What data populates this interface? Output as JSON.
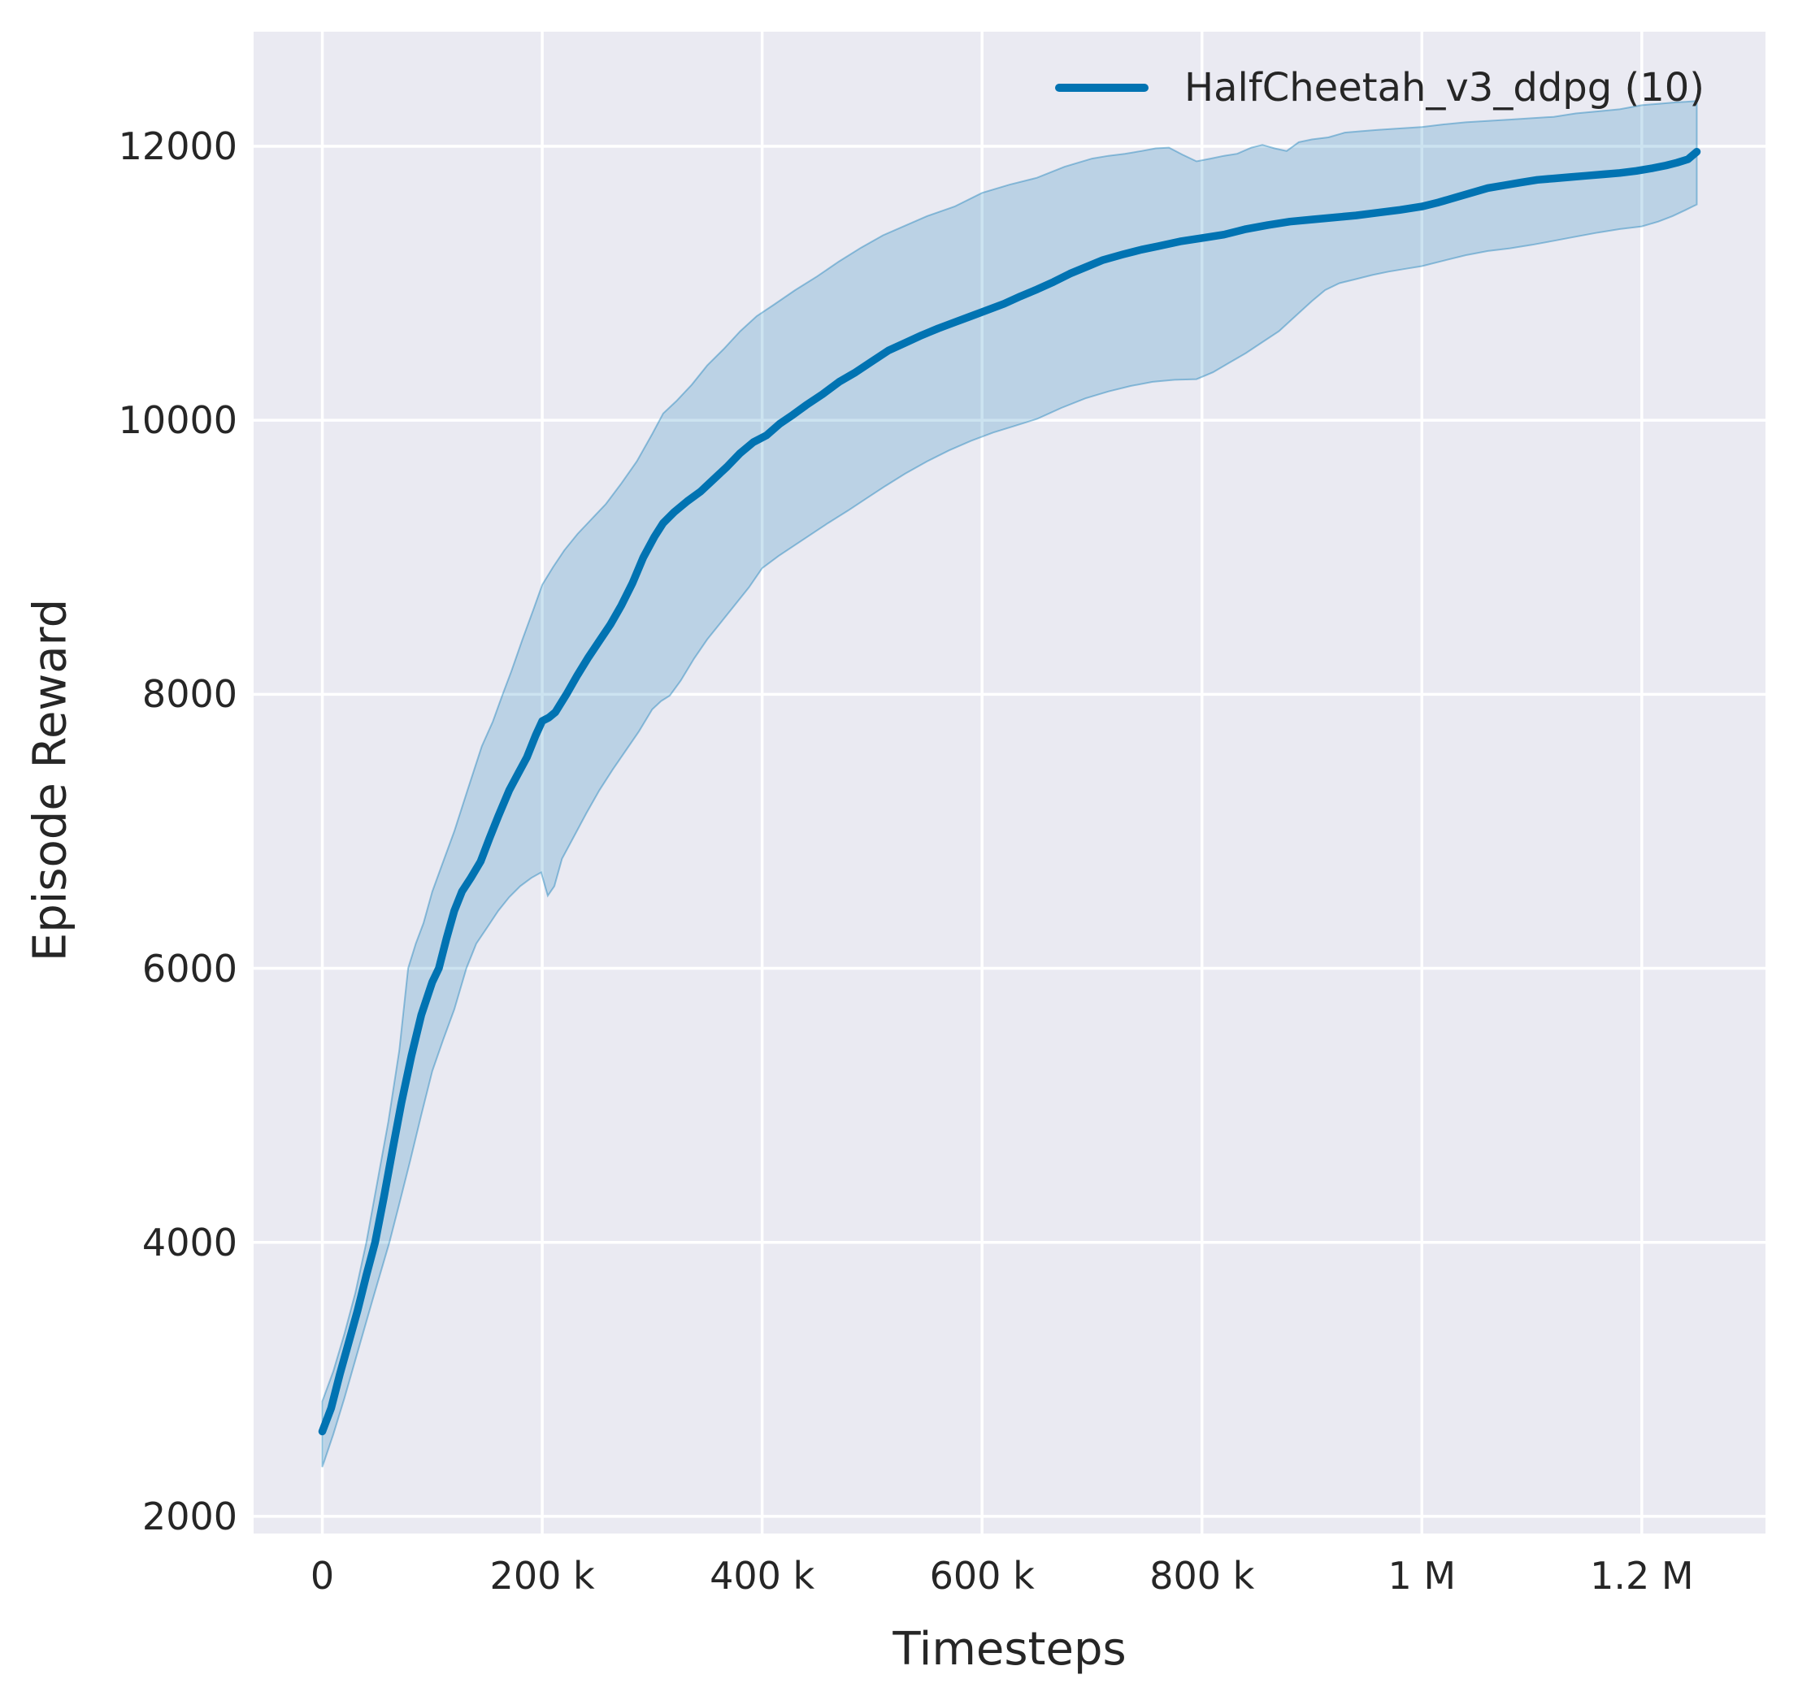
{
  "chart_data": {
    "type": "line",
    "title": "",
    "xlabel": "Timesteps",
    "ylabel": "Episode Reward",
    "legend": {
      "label": "HalfCheetah_v3_ddpg (10)",
      "position": "upper right",
      "frame": false
    },
    "grid": true,
    "x_unit": "timesteps (stored as thousands)",
    "xlim_k": [
      -62.5,
      1312.5
    ],
    "ylim": [
      1875,
      12836
    ],
    "xticks": [
      {
        "v": 0,
        "label": "0"
      },
      {
        "v": 200,
        "label": "200 k"
      },
      {
        "v": 400,
        "label": "400 k"
      },
      {
        "v": 600,
        "label": "600 k"
      },
      {
        "v": 800,
        "label": "800 k"
      },
      {
        "v": 1000,
        "label": "1 M"
      },
      {
        "v": 1200,
        "label": "1.2 M"
      }
    ],
    "yticks": [
      {
        "v": 2000,
        "label": "2000"
      },
      {
        "v": 4000,
        "label": "4000"
      },
      {
        "v": 6000,
        "label": "6000"
      },
      {
        "v": 8000,
        "label": "8000"
      },
      {
        "v": 10000,
        "label": "10000"
      },
      {
        "v": 12000,
        "label": "12000"
      }
    ],
    "colors": {
      "figure_bg": "#ffffff",
      "plot_bg": "#eaeaf2",
      "grid": "#ffffff",
      "text": "#262626",
      "line": "#0173b2",
      "band_fill": "rgba(1,115,178,0.20)",
      "band_edge": "rgba(1,115,178,0.38)"
    },
    "series": [
      {
        "name": "HalfCheetah_v3_ddpg (10)",
        "n_runs": 10,
        "mean": [
          [
            0,
            2620
          ],
          [
            8,
            2790
          ],
          [
            16,
            3040
          ],
          [
            24,
            3270
          ],
          [
            32,
            3500
          ],
          [
            40,
            3760
          ],
          [
            48,
            4000
          ],
          [
            56,
            4330
          ],
          [
            64,
            4680
          ],
          [
            72,
            5020
          ],
          [
            81,
            5360
          ],
          [
            90,
            5660
          ],
          [
            100,
            5900
          ],
          [
            106,
            6000
          ],
          [
            113,
            6220
          ],
          [
            120,
            6420
          ],
          [
            127,
            6560
          ],
          [
            135,
            6660
          ],
          [
            144,
            6780
          ],
          [
            152,
            6950
          ],
          [
            160,
            7110
          ],
          [
            170,
            7300
          ],
          [
            178,
            7420
          ],
          [
            186,
            7540
          ],
          [
            194,
            7700
          ],
          [
            200,
            7805
          ],
          [
            206,
            7830
          ],
          [
            212,
            7870
          ],
          [
            222,
            8000
          ],
          [
            232,
            8140
          ],
          [
            242,
            8270
          ],
          [
            252,
            8390
          ],
          [
            262,
            8510
          ],
          [
            272,
            8650
          ],
          [
            282,
            8810
          ],
          [
            292,
            9000
          ],
          [
            302,
            9150
          ],
          [
            310,
            9250
          ],
          [
            320,
            9330
          ],
          [
            332,
            9410
          ],
          [
            344,
            9480
          ],
          [
            356,
            9570
          ],
          [
            368,
            9660
          ],
          [
            380,
            9760
          ],
          [
            392,
            9840
          ],
          [
            404,
            9890
          ],
          [
            416,
            9975
          ],
          [
            428,
            10040
          ],
          [
            440,
            10110
          ],
          [
            455,
            10190
          ],
          [
            470,
            10280
          ],
          [
            485,
            10350
          ],
          [
            500,
            10430
          ],
          [
            515,
            10510
          ],
          [
            530,
            10565
          ],
          [
            545,
            10620
          ],
          [
            560,
            10670
          ],
          [
            575,
            10715
          ],
          [
            590,
            10760
          ],
          [
            605,
            10805
          ],
          [
            620,
            10850
          ],
          [
            635,
            10905
          ],
          [
            650,
            10955
          ],
          [
            665,
            11010
          ],
          [
            680,
            11070
          ],
          [
            695,
            11120
          ],
          [
            710,
            11170
          ],
          [
            728,
            11210
          ],
          [
            745,
            11245
          ],
          [
            760,
            11270
          ],
          [
            780,
            11305
          ],
          [
            800,
            11330
          ],
          [
            820,
            11355
          ],
          [
            840,
            11395
          ],
          [
            860,
            11425
          ],
          [
            880,
            11450
          ],
          [
            900,
            11465
          ],
          [
            920,
            11480
          ],
          [
            940,
            11495
          ],
          [
            960,
            11515
          ],
          [
            980,
            11535
          ],
          [
            1000,
            11560
          ],
          [
            1015,
            11590
          ],
          [
            1030,
            11625
          ],
          [
            1045,
            11660
          ],
          [
            1060,
            11695
          ],
          [
            1075,
            11715
          ],
          [
            1090,
            11735
          ],
          [
            1105,
            11755
          ],
          [
            1120,
            11765
          ],
          [
            1135,
            11775
          ],
          [
            1150,
            11785
          ],
          [
            1165,
            11795
          ],
          [
            1180,
            11805
          ],
          [
            1195,
            11820
          ],
          [
            1210,
            11840
          ],
          [
            1222,
            11860
          ],
          [
            1232,
            11880
          ],
          [
            1242,
            11905
          ],
          [
            1250,
            11960
          ]
        ],
        "band_upper": [
          [
            0,
            2840
          ],
          [
            10,
            3060
          ],
          [
            20,
            3330
          ],
          [
            30,
            3630
          ],
          [
            40,
            4000
          ],
          [
            50,
            4440
          ],
          [
            60,
            4880
          ],
          [
            70,
            5400
          ],
          [
            78,
            6000
          ],
          [
            85,
            6180
          ],
          [
            92,
            6330
          ],
          [
            100,
            6560
          ],
          [
            110,
            6780
          ],
          [
            120,
            7000
          ],
          [
            132,
            7300
          ],
          [
            145,
            7620
          ],
          [
            155,
            7800
          ],
          [
            164,
            8000
          ],
          [
            172,
            8170
          ],
          [
            182,
            8400
          ],
          [
            192,
            8620
          ],
          [
            200,
            8800
          ],
          [
            210,
            8930
          ],
          [
            220,
            9050
          ],
          [
            232,
            9170
          ],
          [
            245,
            9280
          ],
          [
            258,
            9390
          ],
          [
            272,
            9540
          ],
          [
            286,
            9700
          ],
          [
            300,
            9900
          ],
          [
            310,
            10050
          ],
          [
            322,
            10140
          ],
          [
            336,
            10260
          ],
          [
            350,
            10400
          ],
          [
            365,
            10520
          ],
          [
            380,
            10650
          ],
          [
            395,
            10760
          ],
          [
            410,
            10840
          ],
          [
            430,
            10950
          ],
          [
            450,
            11050
          ],
          [
            470,
            11160
          ],
          [
            490,
            11260
          ],
          [
            510,
            11350
          ],
          [
            530,
            11420
          ],
          [
            550,
            11490
          ],
          [
            575,
            11560
          ],
          [
            600,
            11660
          ],
          [
            625,
            11720
          ],
          [
            650,
            11770
          ],
          [
            675,
            11850
          ],
          [
            700,
            11910
          ],
          [
            715,
            11930
          ],
          [
            730,
            11945
          ],
          [
            745,
            11965
          ],
          [
            758,
            11985
          ],
          [
            770,
            11990
          ],
          [
            782,
            11940
          ],
          [
            795,
            11890
          ],
          [
            808,
            11910
          ],
          [
            820,
            11930
          ],
          [
            832,
            11945
          ],
          [
            845,
            11990
          ],
          [
            855,
            12010
          ],
          [
            866,
            11985
          ],
          [
            877,
            11965
          ],
          [
            888,
            12030
          ],
          [
            900,
            12050
          ],
          [
            915,
            12065
          ],
          [
            930,
            12100
          ],
          [
            945,
            12110
          ],
          [
            960,
            12120
          ],
          [
            980,
            12130
          ],
          [
            1000,
            12140
          ],
          [
            1020,
            12160
          ],
          [
            1040,
            12175
          ],
          [
            1060,
            12185
          ],
          [
            1080,
            12195
          ],
          [
            1100,
            12205
          ],
          [
            1120,
            12215
          ],
          [
            1140,
            12240
          ],
          [
            1160,
            12255
          ],
          [
            1180,
            12270
          ],
          [
            1200,
            12300
          ],
          [
            1215,
            12310
          ],
          [
            1230,
            12320
          ],
          [
            1240,
            12325
          ],
          [
            1250,
            12330
          ]
        ],
        "band_lower": [
          [
            0,
            2360
          ],
          [
            10,
            2600
          ],
          [
            20,
            2860
          ],
          [
            30,
            3140
          ],
          [
            45,
            3560
          ],
          [
            61,
            4000
          ],
          [
            70,
            4280
          ],
          [
            80,
            4600
          ],
          [
            90,
            4930
          ],
          [
            100,
            5250
          ],
          [
            110,
            5480
          ],
          [
            120,
            5700
          ],
          [
            131,
            6000
          ],
          [
            140,
            6180
          ],
          [
            150,
            6300
          ],
          [
            160,
            6420
          ],
          [
            170,
            6520
          ],
          [
            180,
            6600
          ],
          [
            190,
            6660
          ],
          [
            199,
            6700
          ],
          [
            205,
            6530
          ],
          [
            211,
            6600
          ],
          [
            218,
            6800
          ],
          [
            228,
            6950
          ],
          [
            240,
            7130
          ],
          [
            252,
            7300
          ],
          [
            264,
            7450
          ],
          [
            276,
            7590
          ],
          [
            288,
            7730
          ],
          [
            300,
            7890
          ],
          [
            308,
            7950
          ],
          [
            316,
            7990
          ],
          [
            326,
            8100
          ],
          [
            338,
            8260
          ],
          [
            350,
            8400
          ],
          [
            362,
            8520
          ],
          [
            375,
            8650
          ],
          [
            388,
            8780
          ],
          [
            400,
            8920
          ],
          [
            415,
            9010
          ],
          [
            430,
            9090
          ],
          [
            445,
            9170
          ],
          [
            460,
            9250
          ],
          [
            478,
            9340
          ],
          [
            495,
            9430
          ],
          [
            512,
            9520
          ],
          [
            530,
            9610
          ],
          [
            550,
            9700
          ],
          [
            570,
            9780
          ],
          [
            590,
            9850
          ],
          [
            610,
            9910
          ],
          [
            630,
            9960
          ],
          [
            650,
            10010
          ],
          [
            672,
            10090
          ],
          [
            694,
            10160
          ],
          [
            715,
            10210
          ],
          [
            735,
            10250
          ],
          [
            755,
            10280
          ],
          [
            775,
            10295
          ],
          [
            795,
            10300
          ],
          [
            810,
            10350
          ],
          [
            825,
            10420
          ],
          [
            840,
            10490
          ],
          [
            855,
            10570
          ],
          [
            870,
            10650
          ],
          [
            885,
            10760
          ],
          [
            900,
            10870
          ],
          [
            912,
            10950
          ],
          [
            925,
            11000
          ],
          [
            940,
            11030
          ],
          [
            955,
            11060
          ],
          [
            970,
            11085
          ],
          [
            985,
            11105
          ],
          [
            1000,
            11125
          ],
          [
            1020,
            11165
          ],
          [
            1040,
            11205
          ],
          [
            1060,
            11235
          ],
          [
            1080,
            11255
          ],
          [
            1100,
            11280
          ],
          [
            1120,
            11310
          ],
          [
            1140,
            11340
          ],
          [
            1160,
            11370
          ],
          [
            1180,
            11395
          ],
          [
            1200,
            11415
          ],
          [
            1215,
            11450
          ],
          [
            1228,
            11490
          ],
          [
            1240,
            11535
          ],
          [
            1250,
            11575
          ]
        ]
      }
    ]
  }
}
